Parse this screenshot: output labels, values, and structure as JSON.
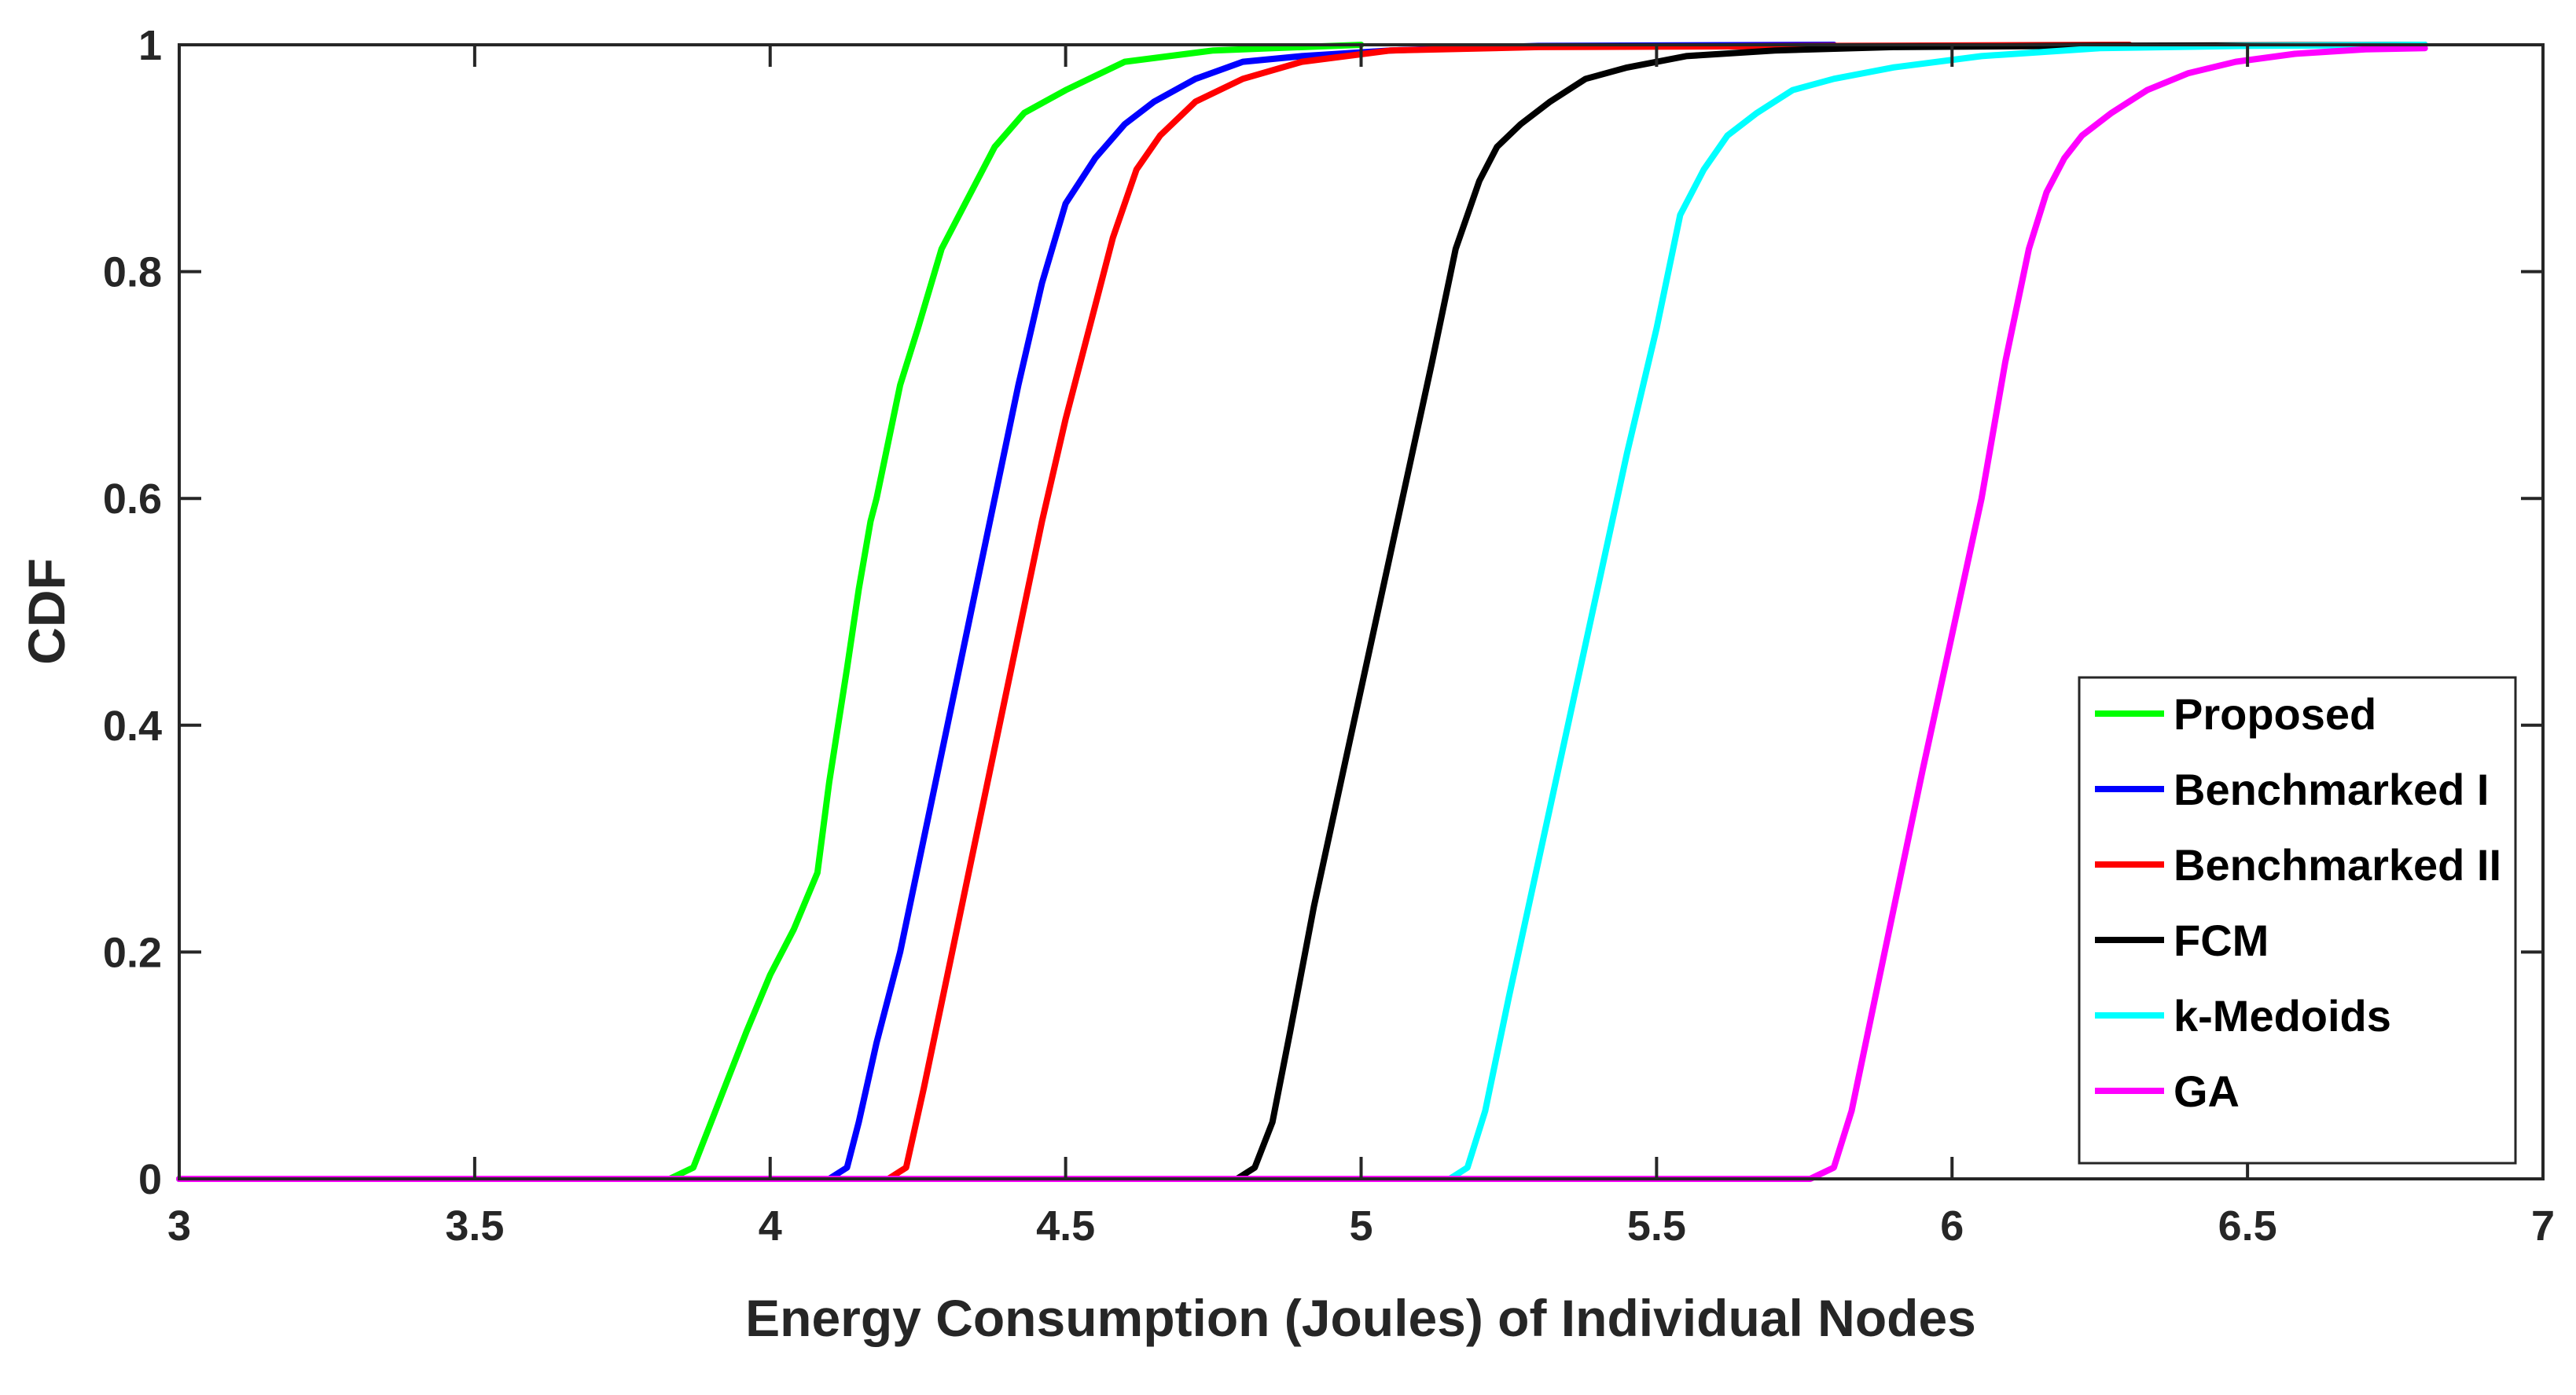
{
  "chart_data": {
    "type": "line",
    "title": "",
    "xlabel": "Energy Consumption (Joules) of Individual Nodes",
    "ylabel": "CDF",
    "xlim": [
      3,
      7
    ],
    "ylim": [
      0,
      1
    ],
    "xticks": [
      3,
      3.5,
      4,
      4.5,
      5,
      5.5,
      6,
      6.5,
      7
    ],
    "xtick_labels": [
      "3",
      "3.5",
      "4",
      "4.5",
      "5",
      "5.5",
      "6",
      "6.5",
      "7"
    ],
    "yticks": [
      0,
      0.2,
      0.4,
      0.6,
      0.8,
      1
    ],
    "ytick_labels": [
      "0",
      "0.2",
      "0.4",
      "0.6",
      "0.8",
      "1"
    ],
    "grid": false,
    "legend_position": "lower-right",
    "series": [
      {
        "name": "Proposed",
        "color": "#00ff00",
        "x": [
          3.0,
          3.83,
          3.87,
          3.9,
          3.93,
          3.96,
          4.0,
          4.04,
          4.08,
          4.1,
          4.13,
          4.15,
          4.17,
          4.18,
          4.2,
          4.22,
          4.25,
          4.29,
          4.33,
          4.38,
          4.43,
          4.5,
          4.6,
          4.75,
          5.0
        ],
        "y": [
          0.0,
          0.0,
          0.01,
          0.05,
          0.09,
          0.13,
          0.18,
          0.22,
          0.27,
          0.35,
          0.45,
          0.52,
          0.58,
          0.6,
          0.65,
          0.7,
          0.75,
          0.82,
          0.86,
          0.91,
          0.94,
          0.96,
          0.985,
          0.995,
          1.0
        ]
      },
      {
        "name": "Benchmarked I",
        "color": "#0000ff",
        "x": [
          3.0,
          4.1,
          4.13,
          4.15,
          4.18,
          4.22,
          4.26,
          4.3,
          4.34,
          4.38,
          4.42,
          4.46,
          4.5,
          4.55,
          4.6,
          4.65,
          4.72,
          4.8,
          4.9,
          5.05,
          5.3,
          5.8
        ],
        "y": [
          0.0,
          0.0,
          0.01,
          0.05,
          0.12,
          0.2,
          0.3,
          0.4,
          0.5,
          0.6,
          0.7,
          0.79,
          0.86,
          0.9,
          0.93,
          0.95,
          0.97,
          0.985,
          0.99,
          0.995,
          0.999,
          1.0
        ]
      },
      {
        "name": "Benchmarked II",
        "color": "#ff0000",
        "x": [
          3.0,
          4.2,
          4.23,
          4.26,
          4.3,
          4.34,
          4.38,
          4.42,
          4.46,
          4.5,
          4.54,
          4.58,
          4.62,
          4.66,
          4.72,
          4.8,
          4.9,
          5.05,
          5.3,
          5.8,
          6.3
        ],
        "y": [
          0.0,
          0.0,
          0.01,
          0.08,
          0.18,
          0.28,
          0.38,
          0.48,
          0.58,
          0.67,
          0.75,
          0.83,
          0.89,
          0.92,
          0.95,
          0.97,
          0.985,
          0.995,
          0.998,
          0.999,
          1.0
        ]
      },
      {
        "name": "FCM",
        "color": "#000000",
        "x": [
          3.0,
          4.79,
          4.82,
          4.85,
          4.88,
          4.92,
          4.97,
          5.02,
          5.07,
          5.12,
          5.16,
          5.2,
          5.23,
          5.27,
          5.32,
          5.38,
          5.45,
          5.55,
          5.7,
          5.9,
          6.2,
          6.8
        ],
        "y": [
          0.0,
          0.0,
          0.01,
          0.05,
          0.13,
          0.24,
          0.36,
          0.48,
          0.6,
          0.72,
          0.82,
          0.88,
          0.91,
          0.93,
          0.95,
          0.97,
          0.98,
          0.99,
          0.995,
          0.998,
          0.999,
          1.0
        ]
      },
      {
        "name": "k-Medoids",
        "color": "#00ffff",
        "x": [
          3.0,
          5.15,
          5.18,
          5.21,
          5.25,
          5.3,
          5.35,
          5.4,
          5.45,
          5.5,
          5.54,
          5.58,
          5.62,
          5.67,
          5.73,
          5.8,
          5.9,
          6.05,
          6.25,
          6.5,
          6.8
        ],
        "y": [
          0.0,
          0.0,
          0.01,
          0.06,
          0.16,
          0.28,
          0.4,
          0.52,
          0.64,
          0.75,
          0.85,
          0.89,
          0.92,
          0.94,
          0.96,
          0.97,
          0.98,
          0.99,
          0.997,
          0.999,
          1.0
        ]
      },
      {
        "name": "GA",
        "color": "#ff00ff",
        "x": [
          3.0,
          5.76,
          5.8,
          5.83,
          5.87,
          5.91,
          5.95,
          6.0,
          6.05,
          6.09,
          6.13,
          6.16,
          6.19,
          6.22,
          6.27,
          6.33,
          6.4,
          6.48,
          6.58,
          6.7,
          6.8
        ],
        "y": [
          0.0,
          0.0,
          0.01,
          0.06,
          0.16,
          0.26,
          0.36,
          0.48,
          0.6,
          0.72,
          0.82,
          0.87,
          0.9,
          0.92,
          0.94,
          0.96,
          0.975,
          0.985,
          0.992,
          0.996,
          0.997
        ]
      }
    ]
  }
}
